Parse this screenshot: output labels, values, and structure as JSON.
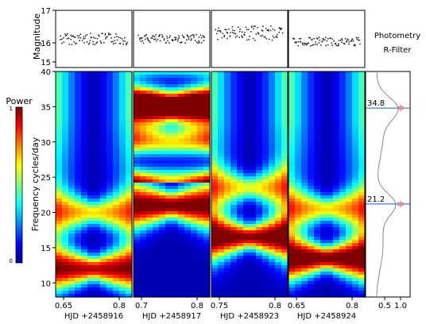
{
  "chart_data": {
    "type": "heatmap",
    "photometry": {
      "ylabel": "Magnitude",
      "ylim": [
        15,
        17
      ],
      "yticks": [
        "17",
        "16",
        "15"
      ],
      "annotation_line1": "Photometry",
      "annotation_line2": "R-Filter",
      "series": [
        {
          "night": "HJD +2458916",
          "mean_mag": 16.0,
          "scatter": 0.2
        },
        {
          "night": "HJD +2458917",
          "mean_mag": 16.0,
          "scatter": 0.15
        },
        {
          "night": "HJD +2458923",
          "mean_mag": 15.8,
          "scatter": 0.25
        },
        {
          "night": "HJD +2458924",
          "mean_mag": 16.1,
          "scatter": 0.15
        }
      ]
    },
    "periodogram": {
      "ylabel": "Frequency cycles/day",
      "ylim": [
        8,
        40
      ],
      "yticks": [
        "10",
        "15",
        "20",
        "25",
        "30",
        "35",
        "40"
      ],
      "colorbar": {
        "label": "Power",
        "min": 0,
        "max": 1,
        "ticks": [
          "1",
          "0"
        ]
      },
      "panels": [
        {
          "xlabel": "HJD +2458916",
          "xticks": [
            "0.65",
            "0.8"
          ],
          "peaks": [
            {
              "freq": 12,
              "strength": 0.9
            },
            {
              "freq": 20,
              "strength": 0.6
            }
          ]
        },
        {
          "xlabel": "HJD +2458917",
          "xticks": [
            "0.7",
            "0.8"
          ],
          "peaks": [
            {
              "freq": 21,
              "strength": 1.0
            },
            {
              "freq": 34.5,
              "strength": 0.85
            }
          ]
        },
        {
          "xlabel": "HJD +2458923",
          "xticks": [
            "0.75",
            "0.8"
          ],
          "peaks": [
            {
              "freq": 16.5,
              "strength": 0.95
            },
            {
              "freq": 23.5,
              "strength": 0.55
            }
          ]
        },
        {
          "xlabel": "HJD +2458924",
          "xticks": [
            "0.65",
            "0.8"
          ],
          "peaks": [
            {
              "freq": 13.5,
              "strength": 1.0
            },
            {
              "freq": 20.5,
              "strength": 0.6
            }
          ]
        }
      ]
    },
    "summed_power": {
      "xticks": [
        "0.5",
        "1.0"
      ],
      "peaks": [
        {
          "freq": 34.8,
          "label": "34.8"
        },
        {
          "freq": 21.2,
          "label": "21.2"
        }
      ]
    }
  }
}
